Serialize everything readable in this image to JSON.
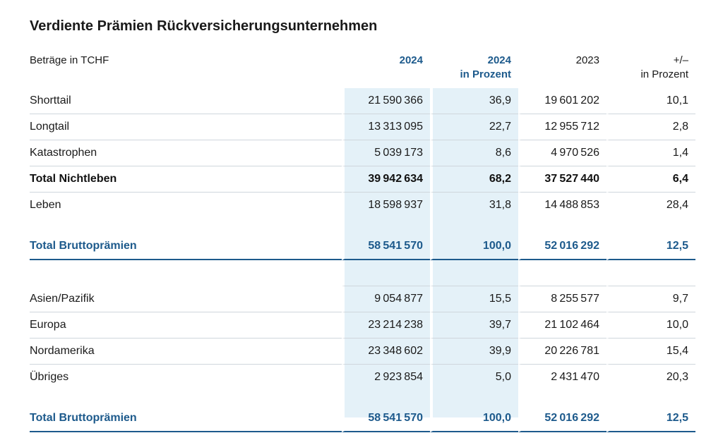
{
  "title": "Verdiente Prämien Rückversicherungsunternehmen",
  "table": {
    "header": {
      "label": "Beträge in TCHF",
      "col1": "2024",
      "col2_line1": "2024",
      "col2_line2": "in Prozent",
      "col3": "2023",
      "col4_line1": "+/–",
      "col4_line2": "in Prozent"
    },
    "section1": [
      {
        "label": "Shorttail",
        "v2024": "21590366",
        "pct2024": "36,9",
        "v2023": "19601202",
        "change": "10,1"
      },
      {
        "label": "Longtail",
        "v2024": "13313095",
        "pct2024": "22,7",
        "v2023": "12955712",
        "change": "2,8"
      },
      {
        "label": "Katastrophen",
        "v2024": "5039173",
        "pct2024": "8,6",
        "v2023": "4970526",
        "change": "1,4"
      },
      {
        "label": "Total Nichtleben",
        "v2024": "39942634",
        "pct2024": "68,2",
        "v2023": "37527440",
        "change": "6,4"
      },
      {
        "label": "Leben",
        "v2024": "18598937",
        "pct2024": "31,8",
        "v2023": "14488853",
        "change": "28,4"
      }
    ],
    "total1": {
      "label": "Total Bruttoprämien",
      "v2024": "58541570",
      "pct2024": "100,0",
      "v2023": "52016292",
      "change": "12,5"
    },
    "section2": [
      {
        "label": "Asien/Pazifik",
        "v2024": "9054877",
        "pct2024": "15,5",
        "v2023": "8255577",
        "change": "9,7"
      },
      {
        "label": "Europa",
        "v2024": "23214238",
        "pct2024": "39,7",
        "v2023": "21102464",
        "change": "10,0"
      },
      {
        "label": "Nordamerika",
        "v2024": "23348602",
        "pct2024": "39,9",
        "v2023": "20226781",
        "change": "15,4"
      },
      {
        "label": "Übriges",
        "v2024": "2923854",
        "pct2024": "5,0",
        "v2023": "2431470",
        "change": "20,3"
      }
    ],
    "total2": {
      "label": "Total Bruttoprämien",
      "v2024": "58541570",
      "pct2024": "100,0",
      "v2023": "52016292",
      "change": "12,5"
    }
  }
}
